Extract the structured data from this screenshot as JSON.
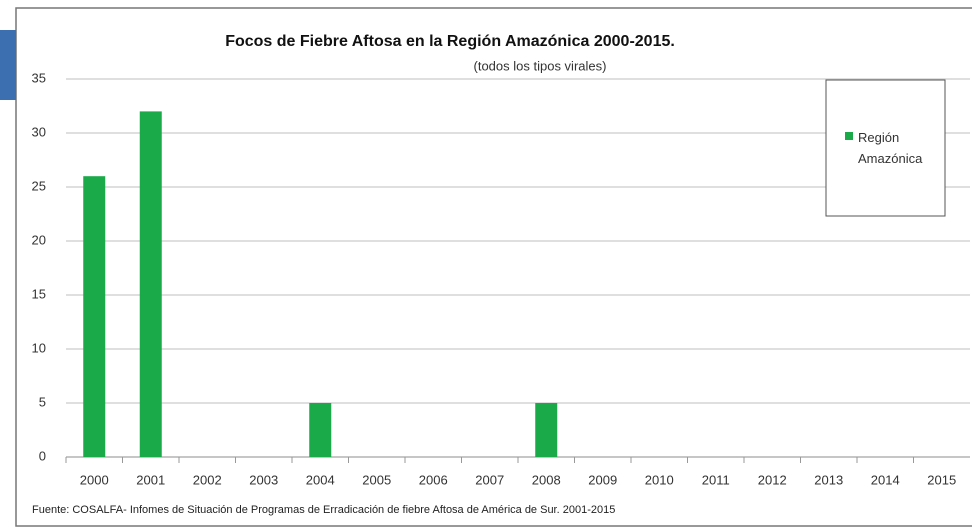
{
  "chart_data": {
    "type": "bar",
    "title": "Focos de Fiebre Aftosa en la Región  Amazónica 2000-2015.",
    "subtitle": "(todos los tipos virales)",
    "source": "Fuente: COSALFA- Infomes de Situación de Programas de Erradicación de fiebre Aftosa de América de Sur. 2001-2015",
    "categories": [
      "2000",
      "2001",
      "2002",
      "2003",
      "2004",
      "2005",
      "2006",
      "2007",
      "2008",
      "2009",
      "2010",
      "2011",
      "2012",
      "2013",
      "2014",
      "2015"
    ],
    "series": [
      {
        "name": "Región Amazónica",
        "color": "#1aaa4a",
        "values": [
          26,
          32,
          0,
          0,
          5,
          0,
          0,
          0,
          5,
          0,
          0,
          0,
          0,
          0,
          0,
          0
        ]
      }
    ],
    "ylim": [
      0,
      35
    ],
    "yticks": [
      0,
      5,
      10,
      15,
      20,
      25,
      30,
      35
    ],
    "grid": true,
    "legend": "upper right"
  }
}
